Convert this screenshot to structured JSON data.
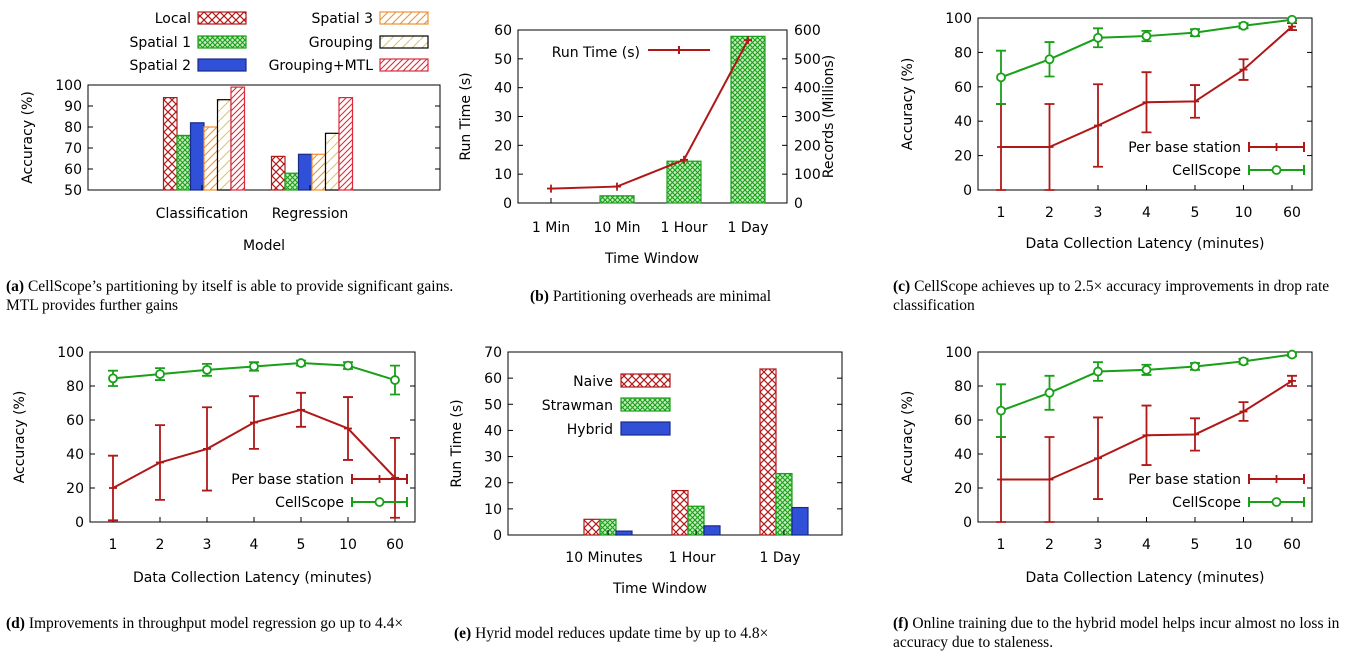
{
  "colors": {
    "red": "#b01818",
    "green": "#18a018",
    "blue": "#3050d8",
    "orange": "#f09030",
    "yellow": "#e0c860",
    "pink": "#e02838"
  },
  "captions": [
    {
      "label": "(a)",
      "text": "CellScope’s partitioning by itself is able to provide significant gains. MTL provides further gains"
    },
    {
      "label": "(b)",
      "text": "Partitioning overheads are minimal"
    },
    {
      "label": "(c)",
      "text": "CellScope achieves up to 2.5× accuracy improvements in drop rate classification"
    },
    {
      "label": "(d)",
      "text": "Improvements in throughput model regression go up to 4.4×"
    },
    {
      "label": "(e)",
      "text": "Hyrid model reduces update time by up to 4.8×"
    },
    {
      "label": "(f)",
      "text": "Online training due to the hybrid model helps incur almost no loss in accuracy due to staleness."
    }
  ],
  "chart_data": [
    {
      "id": "a",
      "type": "bar",
      "xlabel": "Model",
      "ylabel": "Accuracy (%)",
      "ylim": [
        50,
        100
      ],
      "yticks": [
        50,
        60,
        70,
        80,
        90,
        100
      ],
      "categories": [
        "Classification",
        "Regression"
      ],
      "legend_placement": "top",
      "series": [
        {
          "name": "Local",
          "pattern": "cross-red",
          "values": [
            94,
            66
          ]
        },
        {
          "name": "Spatial 1",
          "pattern": "grid-green",
          "values": [
            76,
            58
          ]
        },
        {
          "name": "Spatial 2",
          "pattern": "solid-blue",
          "values": [
            82,
            67
          ]
        },
        {
          "name": "Spatial 3",
          "pattern": "diag-orange",
          "values": [
            80,
            67
          ]
        },
        {
          "name": "Grouping",
          "pattern": "diag-yellow",
          "values": [
            93,
            77
          ]
        },
        {
          "name": "Grouping+MTL",
          "pattern": "diag-pink",
          "values": [
            99,
            94
          ]
        }
      ]
    },
    {
      "id": "b",
      "type": "bar",
      "xlabel": "Time Window",
      "ylabel": "Run Time (s)",
      "y2label": "Records (Millions)",
      "ylim": [
        0,
        60
      ],
      "yticks": [
        0,
        10,
        20,
        30,
        40,
        50,
        60
      ],
      "y2lim": [
        0,
        600
      ],
      "y2ticks": [
        0,
        100,
        200,
        300,
        400,
        500,
        600
      ],
      "categories": [
        "1 Min",
        "10 Min",
        "1 Hour",
        "1 Day"
      ],
      "bars": {
        "axis": "right",
        "values": [
          0,
          25,
          145,
          578
        ]
      },
      "line": {
        "name": "Run Time (s)",
        "values": [
          5,
          5.7,
          15,
          56.5
        ]
      },
      "legend_placement": "top-left"
    },
    {
      "id": "c",
      "type": "line",
      "xlabel": "Data Collection Latency (minutes)",
      "ylabel": "Accuracy (%)",
      "ylim": [
        0,
        100
      ],
      "yticks": [
        0,
        20,
        40,
        60,
        80,
        100
      ],
      "x": [
        "1",
        "2",
        "3",
        "4",
        "5",
        "10",
        "60"
      ],
      "legend_placement": "bottom-right",
      "series": [
        {
          "name": "Per base station",
          "marker": "plus",
          "values": [
            25,
            25,
            37.5,
            51,
            51.5,
            70,
            95
          ],
          "err": [
            25,
            25,
            24,
            17.5,
            9.5,
            6,
            2
          ]
        },
        {
          "name": "CellScope",
          "marker": "circle",
          "values": [
            65.5,
            76,
            88.5,
            89.5,
            91.5,
            95.5,
            99
          ],
          "err": [
            15.5,
            10,
            5.5,
            3,
            2,
            1.5,
            0.5
          ]
        }
      ]
    },
    {
      "id": "d",
      "type": "line",
      "xlabel": "Data Collection Latency (minutes)",
      "ylabel": "Accuracy (%)",
      "ylim": [
        0,
        100
      ],
      "yticks": [
        0,
        20,
        40,
        60,
        80,
        100
      ],
      "x": [
        "1",
        "2",
        "3",
        "4",
        "5",
        "10",
        "60"
      ],
      "legend_placement": "bottom-right",
      "series": [
        {
          "name": "Per base station",
          "marker": "plus",
          "values": [
            20,
            35,
            43,
            58.5,
            66,
            55,
            26
          ],
          "err": [
            19,
            22,
            24.5,
            15.5,
            10,
            18.5,
            23.5
          ]
        },
        {
          "name": "CellScope",
          "marker": "circle",
          "values": [
            84.5,
            87,
            89.5,
            91.5,
            93.5,
            92,
            83.5
          ],
          "err": [
            4.5,
            3.5,
            3.5,
            2.5,
            1.5,
            2,
            8.5
          ]
        }
      ]
    },
    {
      "id": "e",
      "type": "bar",
      "xlabel": "Time Window",
      "ylabel": "Run Time (s)",
      "ylim": [
        0,
        70
      ],
      "yticks": [
        0,
        10,
        20,
        30,
        40,
        50,
        60,
        70
      ],
      "categories": [
        "10 Minutes",
        "1 Hour",
        "1 Day"
      ],
      "legend_placement": "top-left",
      "series": [
        {
          "name": "Naive",
          "pattern": "cross-red",
          "values": [
            6,
            17,
            63.5
          ]
        },
        {
          "name": "Strawman",
          "pattern": "grid-green",
          "values": [
            6,
            11,
            23.5
          ]
        },
        {
          "name": "Hybrid",
          "pattern": "solid-blue",
          "values": [
            1.5,
            3.5,
            10.5
          ]
        }
      ]
    },
    {
      "id": "f",
      "type": "line",
      "xlabel": "Data Collection Latency (minutes)",
      "ylabel": "Accuracy (%)",
      "ylim": [
        0,
        100
      ],
      "yticks": [
        0,
        20,
        40,
        60,
        80,
        100
      ],
      "x": [
        "1",
        "2",
        "3",
        "4",
        "5",
        "10",
        "60"
      ],
      "legend_placement": "bottom-right",
      "series": [
        {
          "name": "Per base station",
          "marker": "plus",
          "values": [
            25,
            25,
            37.5,
            51,
            51.5,
            65,
            83
          ],
          "err": [
            25,
            25,
            24,
            17.5,
            9.5,
            5.5,
            3
          ]
        },
        {
          "name": "CellScope",
          "marker": "circle",
          "values": [
            65.5,
            76,
            88.5,
            89.5,
            91.5,
            94.5,
            98.5
          ],
          "err": [
            15.5,
            10,
            5.5,
            3,
            2,
            1.5,
            1
          ]
        }
      ]
    }
  ]
}
